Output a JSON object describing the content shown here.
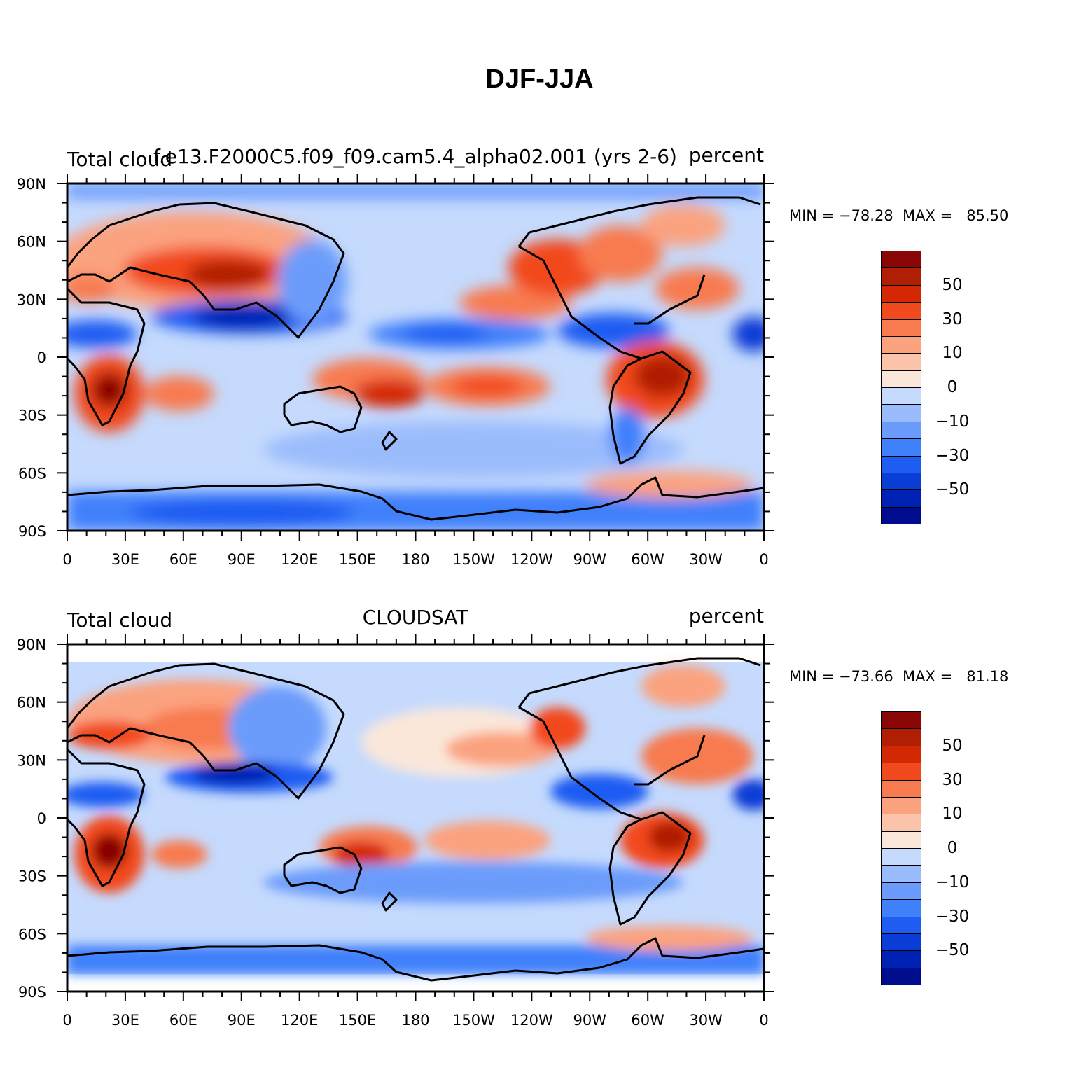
{
  "figure": {
    "title": "DJF-JJA"
  },
  "colors": {
    "levels": [
      "#000c8e",
      "#0022b4",
      "#0a3ed6",
      "#1e5cf2",
      "#3f80fb",
      "#6c9cfb",
      "#9bbcfc",
      "#c5dafd",
      "#fbe7da",
      "#fcc3ab",
      "#fba27f",
      "#f87a4f",
      "#f24a1f",
      "#d42805",
      "#b01e04",
      "#8a0606"
    ],
    "land_outline": "#000000"
  },
  "chart_data": [
    {
      "type": "heatmap",
      "panel": "top",
      "left_label": "Total cloud",
      "center_label": "f.e13.F2000C5.f09_f09.cam5.4_alpha02.001 (yrs 2-6)",
      "right_label": "percent",
      "stats": "MIN = −78.28  MAX =   85.50",
      "min": -78.28,
      "max": 85.5,
      "x_ticks": [
        "0",
        "30E",
        "60E",
        "90E",
        "120E",
        "150E",
        "180",
        "150W",
        "120W",
        "90W",
        "60W",
        "30W",
        "0"
      ],
      "y_ticks": [
        "90N",
        "60N",
        "30N",
        "0",
        "30S",
        "60S",
        "90S"
      ],
      "colorbar_labels": [
        "50",
        "30",
        "10",
        "0",
        "−10",
        "−30",
        "−50"
      ],
      "colorbar_levels": [
        -60,
        -50,
        -40,
        -30,
        -20,
        -10,
        -5,
        0,
        5,
        10,
        20,
        30,
        40,
        50,
        60
      ],
      "xlim": [
        0,
        360
      ],
      "ylim": [
        -90,
        90
      ]
    },
    {
      "type": "heatmap",
      "panel": "bottom",
      "left_label": "Total cloud",
      "center_label": "CLOUDSAT",
      "right_label": "percent",
      "stats": "MIN = −73.66  MAX =   81.18",
      "min": -73.66,
      "max": 81.18,
      "x_ticks": [
        "0",
        "30E",
        "60E",
        "90E",
        "120E",
        "150E",
        "180",
        "150W",
        "120W",
        "90W",
        "60W",
        "30W",
        "0"
      ],
      "y_ticks": [
        "90N",
        "60N",
        "30N",
        "0",
        "30S",
        "60S",
        "90S"
      ],
      "colorbar_labels": [
        "50",
        "30",
        "10",
        "0",
        "−10",
        "−30",
        "−50"
      ],
      "colorbar_levels": [
        -60,
        -50,
        -40,
        -30,
        -20,
        -10,
        -5,
        0,
        5,
        10,
        20,
        30,
        40,
        50,
        60
      ],
      "xlim": [
        0,
        360
      ],
      "ylim": [
        -90,
        90
      ]
    }
  ]
}
